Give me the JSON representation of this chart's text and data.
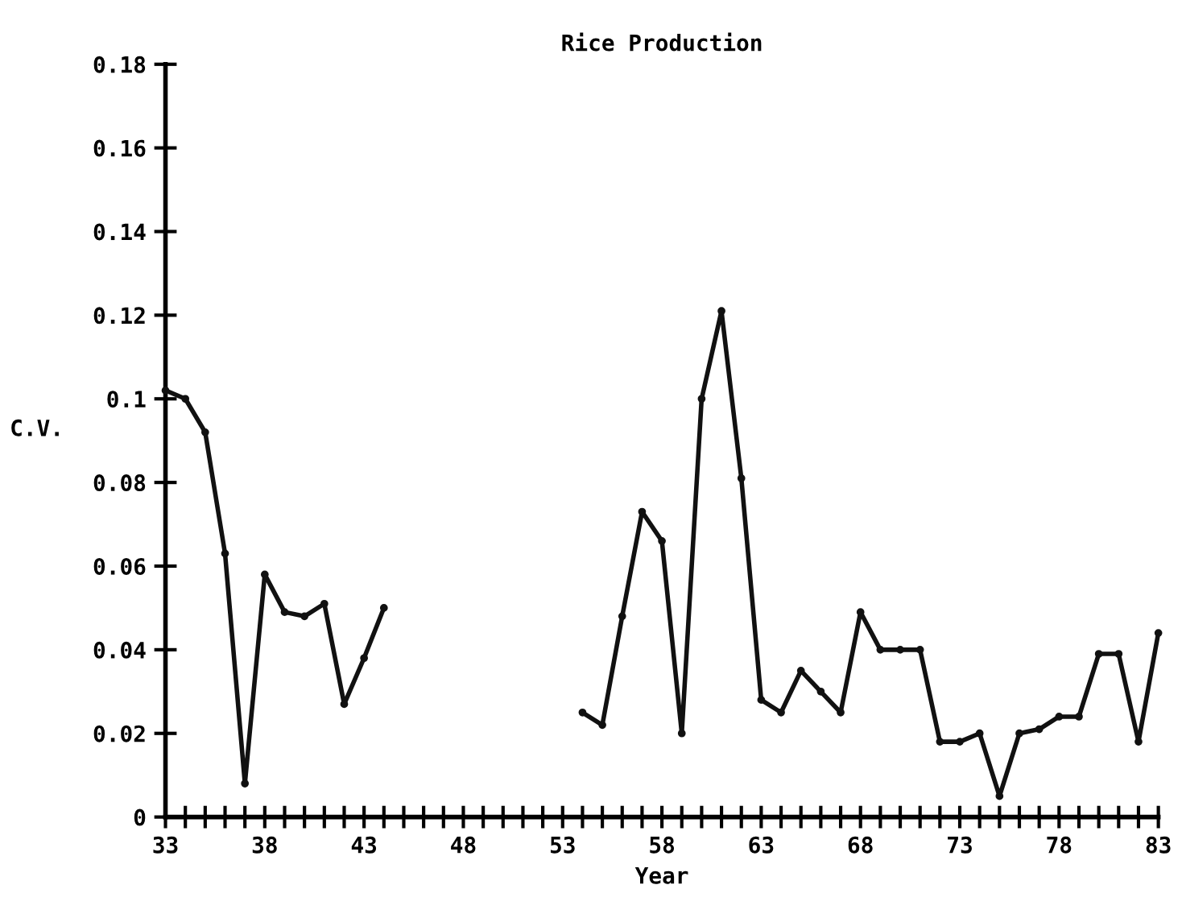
{
  "chart_data": {
    "type": "line",
    "title": "Rice Production",
    "xlabel": "Year",
    "ylabel": "C.V.",
    "x": [
      33,
      34,
      35,
      36,
      37,
      38,
      39,
      40,
      41,
      42,
      43,
      44,
      45,
      46,
      47,
      48,
      49,
      50,
      51,
      52,
      53,
      54,
      55,
      56,
      57,
      58,
      59,
      60,
      61,
      62,
      63,
      64,
      65,
      66,
      67,
      68,
      69,
      70,
      71,
      72,
      73,
      74,
      75,
      76,
      77,
      78,
      79,
      80,
      81,
      82,
      83
    ],
    "series": [
      {
        "color": "#111111",
        "values": [
          0.102,
          0.1,
          0.092,
          0.063,
          0.008,
          0.058,
          0.049,
          0.048,
          0.051,
          0.027,
          0.038,
          0.05,
          null,
          null,
          null,
          null,
          null,
          null,
          null,
          null,
          null,
          0.025,
          0.022,
          0.048,
          0.073,
          0.066,
          0.02,
          0.1,
          0.121,
          0.081,
          0.028,
          0.025,
          0.035,
          0.03,
          0.025,
          0.049,
          0.04,
          0.04,
          0.04,
          0.018,
          0.018,
          0.02,
          0.005,
          0.02,
          0.021,
          0.024,
          0.024,
          0.039,
          0.039,
          0.018,
          0.044
        ]
      }
    ],
    "xlim": [
      33,
      83
    ],
    "ylim": [
      0,
      0.18
    ],
    "xticks": [
      33,
      {
        "value": 34,
        "label": null
      },
      {
        "value": 35,
        "label": null
      },
      {
        "value": 36,
        "label": null
      },
      {
        "value": 37,
        "label": null
      },
      38,
      {
        "value": 39,
        "label": null
      },
      {
        "value": 40,
        "label": null
      },
      {
        "value": 41,
        "label": null
      },
      {
        "value": 42,
        "label": null
      },
      43,
      {
        "value": 44,
        "label": null
      },
      {
        "value": 45,
        "label": null
      },
      {
        "value": 46,
        "label": null
      },
      {
        "value": 47,
        "label": null
      },
      48,
      {
        "value": 49,
        "label": null
      },
      {
        "value": 50,
        "label": null
      },
      {
        "value": 51,
        "label": null
      },
      {
        "value": 52,
        "label": null
      },
      53,
      {
        "value": 54,
        "label": null
      },
      {
        "value": 55,
        "label": null
      },
      {
        "value": 56,
        "label": null
      },
      {
        "value": 57,
        "label": null
      },
      58,
      {
        "value": 59,
        "label": null
      },
      {
        "value": 60,
        "label": null
      },
      {
        "value": 61,
        "label": null
      },
      {
        "value": 62,
        "label": null
      },
      63,
      {
        "value": 64,
        "label": null
      },
      {
        "value": 65,
        "label": null
      },
      {
        "value": 66,
        "label": null
      },
      {
        "value": 67,
        "label": null
      },
      68,
      {
        "value": 69,
        "label": null
      },
      {
        "value": 70,
        "label": null
      },
      {
        "value": 71,
        "label": null
      },
      {
        "value": 72,
        "label": null
      },
      73,
      {
        "value": 74,
        "label": null
      },
      {
        "value": 75,
        "label": null
      },
      {
        "value": 76,
        "label": null
      },
      {
        "value": 77,
        "label": null
      },
      78,
      {
        "value": 79,
        "label": null
      },
      {
        "value": 80,
        "label": null
      },
      {
        "value": 81,
        "label": null
      },
      {
        "value": 82,
        "label": null
      },
      83
    ],
    "yticks": [
      0,
      0.02,
      0.04,
      0.06,
      0.08,
      0.1,
      0.12,
      0.14,
      0.16,
      0.18
    ],
    "grid": false,
    "legend": false,
    "marker": "circle",
    "line_style": "solid"
  }
}
